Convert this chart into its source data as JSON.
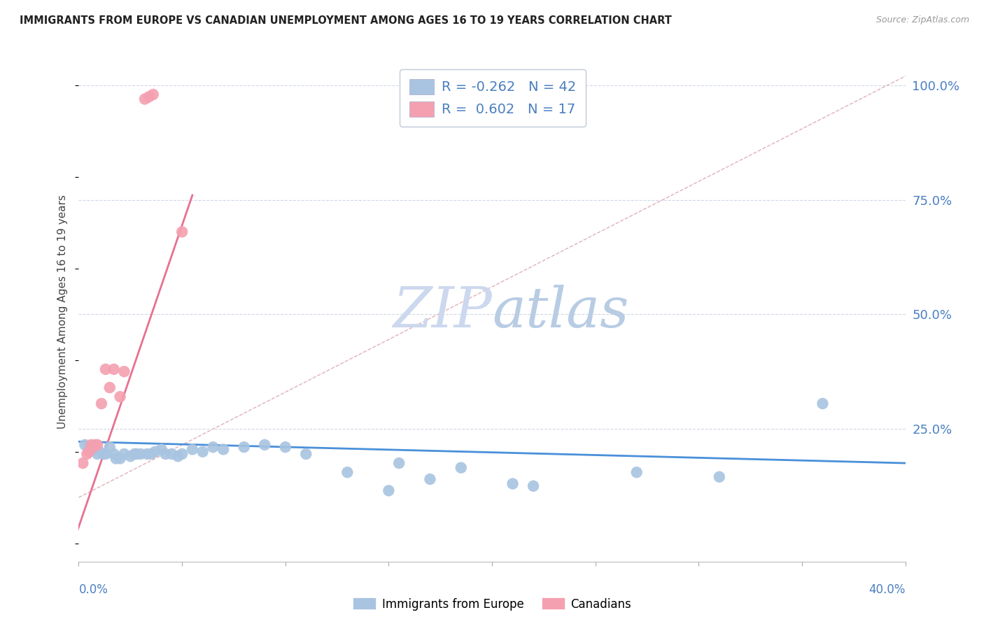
{
  "title": "IMMIGRANTS FROM EUROPE VS CANADIAN UNEMPLOYMENT AMONG AGES 16 TO 19 YEARS CORRELATION CHART",
  "source": "Source: ZipAtlas.com",
  "ylabel": "Unemployment Among Ages 16 to 19 years",
  "ytick_labels": [
    "100.0%",
    "75.0%",
    "50.0%",
    "25.0%"
  ],
  "ytick_values": [
    1.0,
    0.75,
    0.5,
    0.25
  ],
  "xlim": [
    0.0,
    0.4
  ],
  "ylim": [
    -0.04,
    1.05
  ],
  "legend_blue_r": "-0.262",
  "legend_blue_n": "42",
  "legend_pink_r": "0.602",
  "legend_pink_n": "17",
  "blue_color": "#a8c4e0",
  "pink_color": "#f4a0b0",
  "blue_line_color": "#4a90d9",
  "pink_line_color": "#e87090",
  "dashed_line_color": "#e0b0b8",
  "text_color": "#4a7fc1",
  "watermark_text": "ZIPatlas",
  "watermark_color": "#dde8f5",
  "blue_scatter": [
    [
      0.003,
      0.215
    ],
    [
      0.005,
      0.21
    ],
    [
      0.007,
      0.205
    ],
    [
      0.009,
      0.195
    ],
    [
      0.01,
      0.2
    ],
    [
      0.012,
      0.195
    ],
    [
      0.013,
      0.195
    ],
    [
      0.015,
      0.21
    ],
    [
      0.017,
      0.195
    ],
    [
      0.018,
      0.185
    ],
    [
      0.02,
      0.185
    ],
    [
      0.022,
      0.195
    ],
    [
      0.025,
      0.19
    ],
    [
      0.027,
      0.195
    ],
    [
      0.028,
      0.195
    ],
    [
      0.03,
      0.195
    ],
    [
      0.033,
      0.195
    ],
    [
      0.035,
      0.195
    ],
    [
      0.037,
      0.2
    ],
    [
      0.04,
      0.205
    ],
    [
      0.042,
      0.195
    ],
    [
      0.045,
      0.195
    ],
    [
      0.048,
      0.19
    ],
    [
      0.05,
      0.195
    ],
    [
      0.055,
      0.205
    ],
    [
      0.06,
      0.2
    ],
    [
      0.065,
      0.21
    ],
    [
      0.07,
      0.205
    ],
    [
      0.08,
      0.21
    ],
    [
      0.09,
      0.215
    ],
    [
      0.1,
      0.21
    ],
    [
      0.11,
      0.195
    ],
    [
      0.13,
      0.155
    ],
    [
      0.15,
      0.115
    ],
    [
      0.155,
      0.175
    ],
    [
      0.17,
      0.14
    ],
    [
      0.185,
      0.165
    ],
    [
      0.21,
      0.13
    ],
    [
      0.22,
      0.125
    ],
    [
      0.27,
      0.155
    ],
    [
      0.31,
      0.145
    ],
    [
      0.36,
      0.305
    ]
  ],
  "pink_scatter": [
    [
      0.002,
      0.175
    ],
    [
      0.004,
      0.195
    ],
    [
      0.005,
      0.2
    ],
    [
      0.006,
      0.215
    ],
    [
      0.007,
      0.21
    ],
    [
      0.008,
      0.215
    ],
    [
      0.009,
      0.215
    ],
    [
      0.011,
      0.305
    ],
    [
      0.013,
      0.38
    ],
    [
      0.015,
      0.34
    ],
    [
      0.017,
      0.38
    ],
    [
      0.02,
      0.32
    ],
    [
      0.022,
      0.375
    ],
    [
      0.032,
      0.97
    ],
    [
      0.034,
      0.975
    ],
    [
      0.036,
      0.98
    ],
    [
      0.05,
      0.68
    ]
  ],
  "blue_trend_x": [
    0.0,
    0.4
  ],
  "blue_trend_y": [
    0.222,
    0.175
  ],
  "pink_trend_x": [
    -0.005,
    0.055
  ],
  "pink_trend_y": [
    -0.03,
    0.76
  ],
  "dashed_trend_x": [
    0.0,
    0.4
  ],
  "dashed_trend_y": [
    0.1,
    1.02
  ]
}
